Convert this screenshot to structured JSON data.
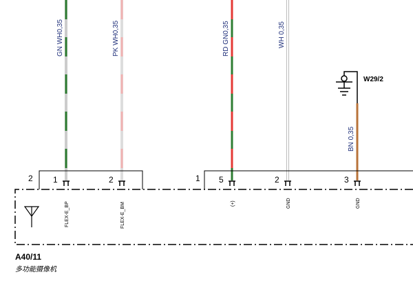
{
  "wires": [
    {
      "label": "GN WH0,35"
    },
    {
      "label": "PK WH0,35"
    },
    {
      "label": "RD GN0,35"
    },
    {
      "label": "WH 0,35"
    },
    {
      "label": "BN 0,35"
    }
  ],
  "ground": {
    "label": "W29/2"
  },
  "connectors": [
    {
      "label": "2",
      "pins": [
        {
          "number": "1",
          "signal": "FLEX-E_BP"
        },
        {
          "number": "2",
          "signal": "FLEX-E_BM"
        }
      ]
    },
    {
      "label": "1",
      "pins": [
        {
          "number": "5",
          "signal": "(+)"
        },
        {
          "number": "2",
          "signal": "GND"
        },
        {
          "number": "3",
          "signal": "GND"
        }
      ]
    }
  ],
  "component": {
    "id": "A40/11",
    "name": "多功能摄像机"
  }
}
